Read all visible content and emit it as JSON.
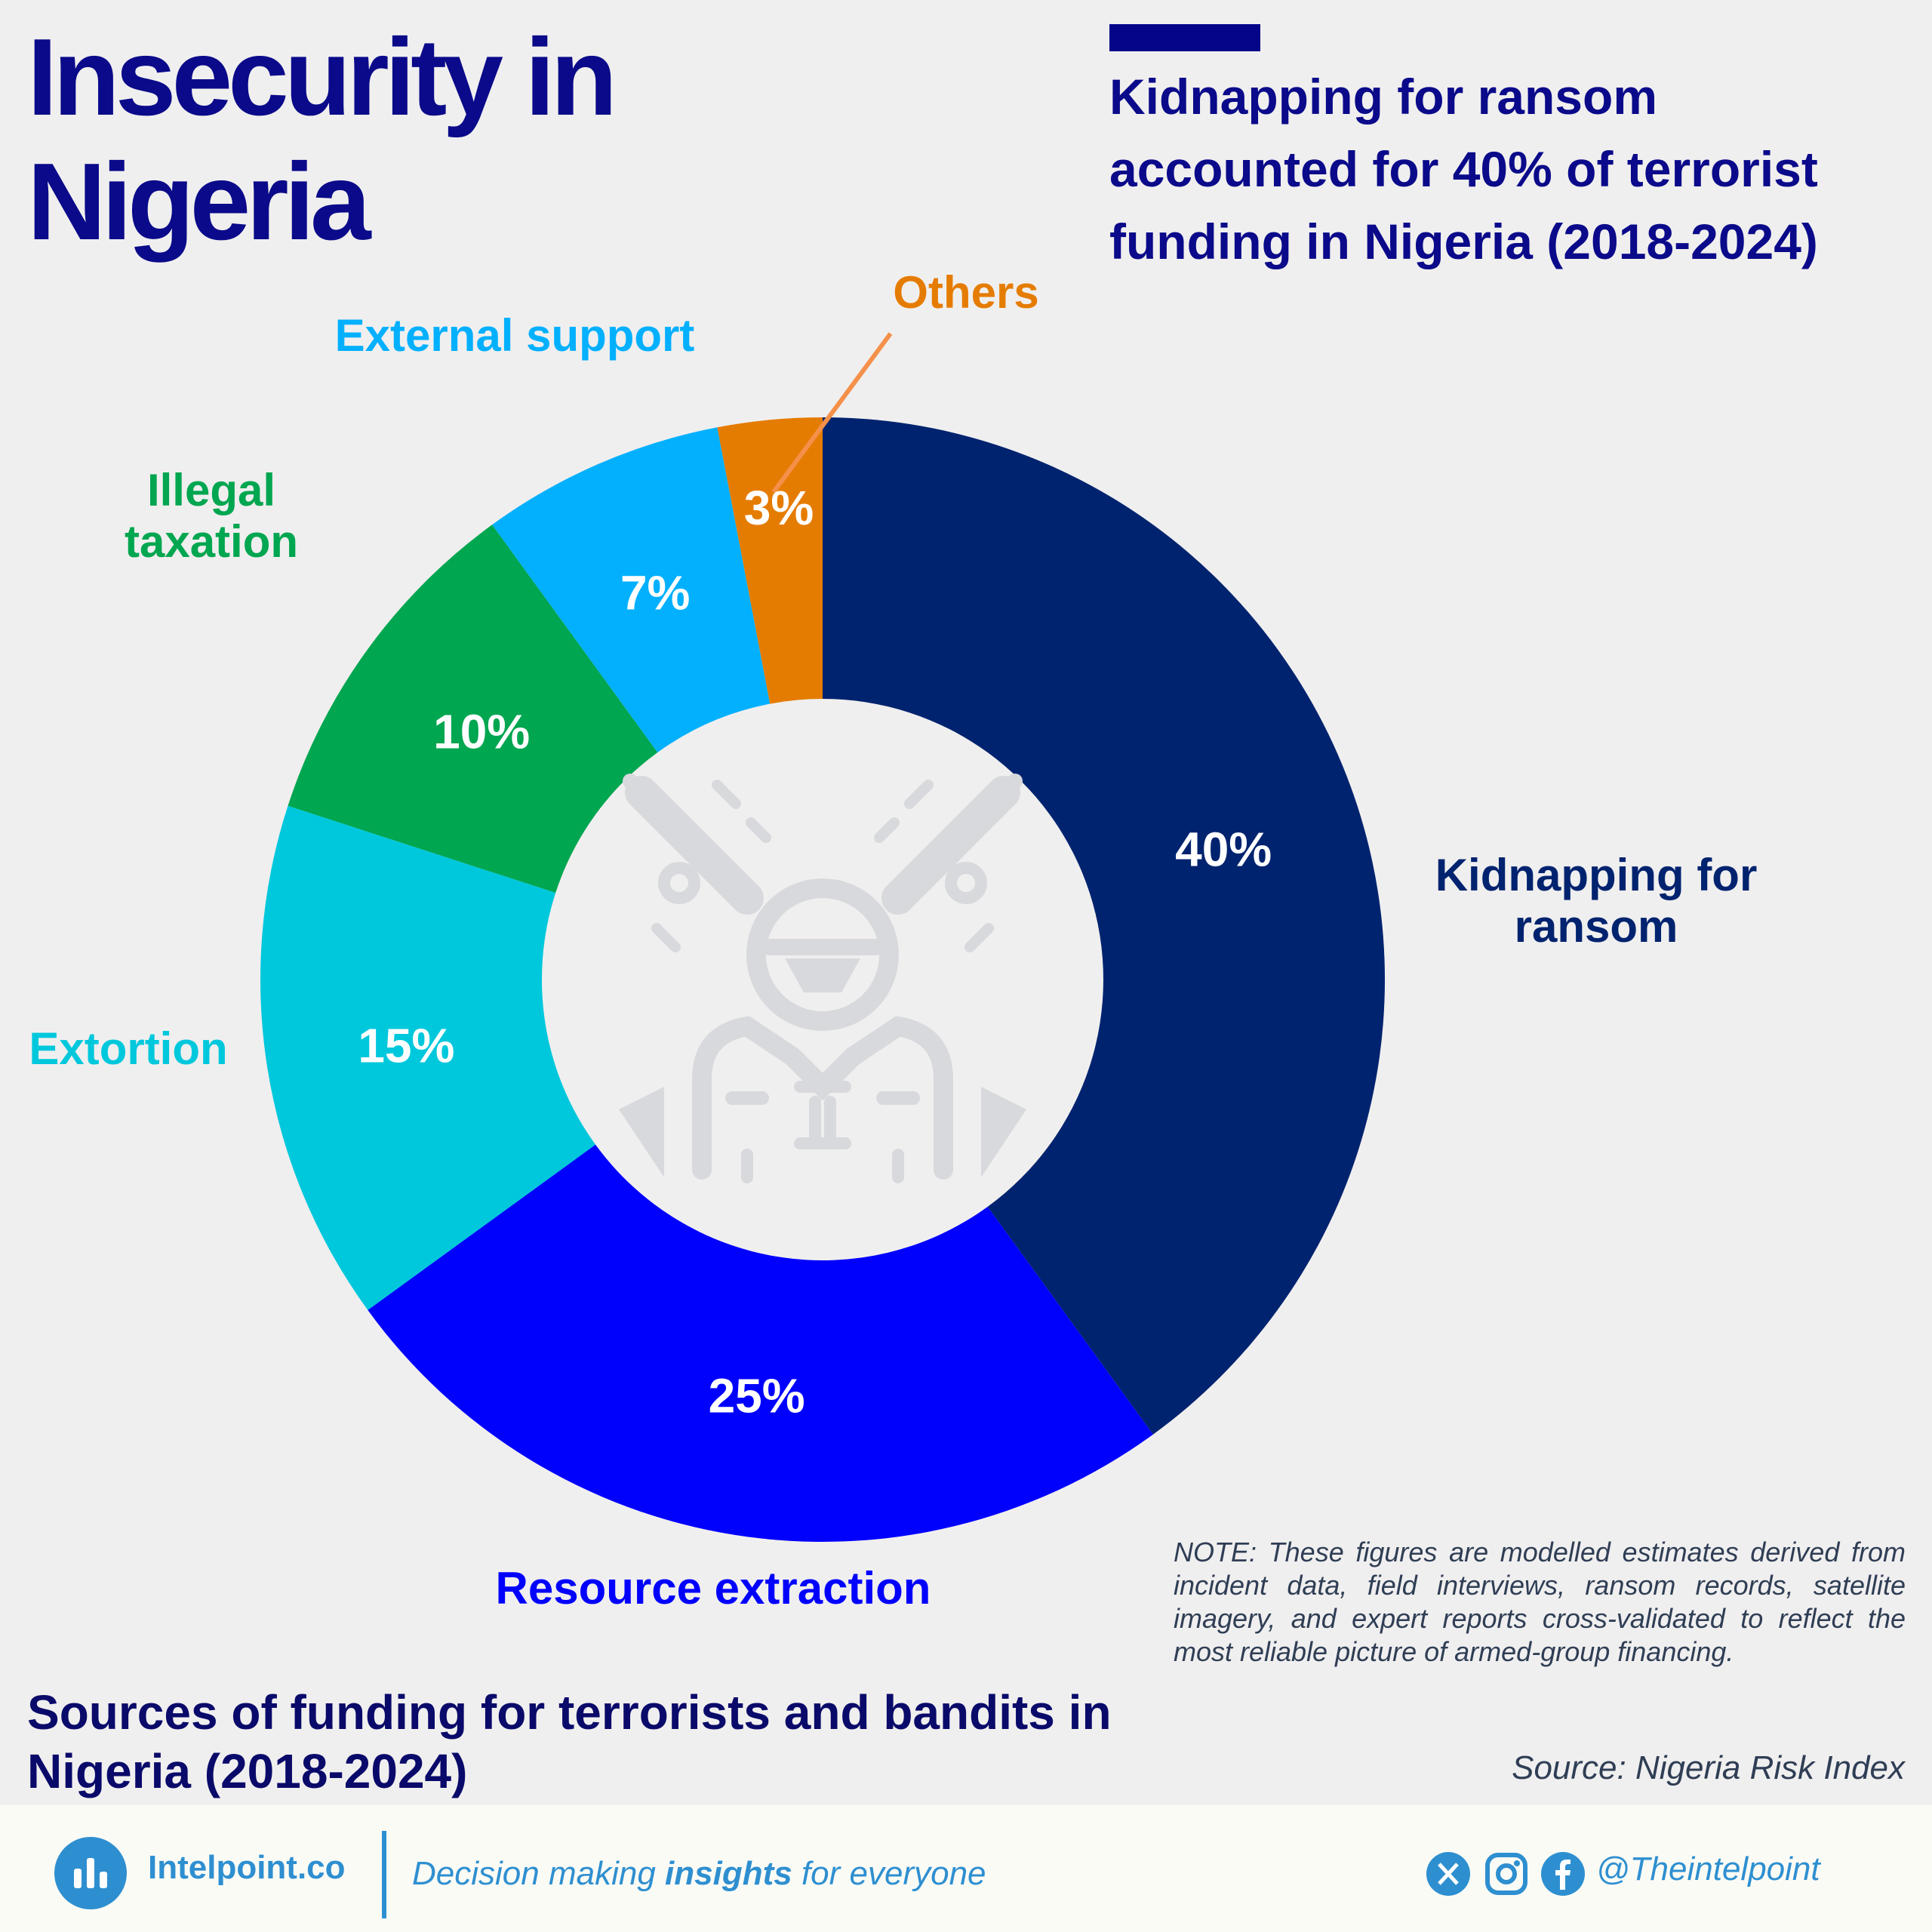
{
  "header": {
    "title_line1": "Insecurity in",
    "title_line2": "Nigeria",
    "headline_line1": "Kidnapping for ransom",
    "headline_line2": "accounted for 40% of terrorist",
    "headline_line3": "funding in Nigeria (2018-2024)"
  },
  "chart_data": {
    "type": "pie",
    "variant": "donut",
    "title": "Sources of funding for terrorists and bandits in Nigeria (2018-2024)",
    "units": "%",
    "slices": [
      {
        "label": "Kidnapping for ransom",
        "label_lines": [
          "Kidnapping for",
          "ransom"
        ],
        "value": 40,
        "value_label": "40%",
        "color": "#00236f",
        "label_color": "#00236f"
      },
      {
        "label": "Resource extraction",
        "label_lines": [
          "Resource extraction"
        ],
        "value": 25,
        "value_label": "25%",
        "color": "#0000fd",
        "label_color": "#0000fd"
      },
      {
        "label": "Extortion",
        "label_lines": [
          "Extortion"
        ],
        "value": 15,
        "value_label": "15%",
        "color": "#00c8dc",
        "label_color": "#00c8dc"
      },
      {
        "label": "Illegal taxation",
        "label_lines": [
          "Illegal",
          "taxation"
        ],
        "value": 10,
        "value_label": "10%",
        "color": "#01a650",
        "label_color": "#01a650"
      },
      {
        "label": "External support",
        "label_lines": [
          "External support"
        ],
        "value": 7,
        "value_label": "7%",
        "color": "#02b0fe",
        "label_color": "#02b0fe"
      },
      {
        "label": "Others",
        "label_lines": [
          "Others"
        ],
        "value": 3,
        "value_label": "3%",
        "color": "#e57c02",
        "label_color": "#e57c02"
      }
    ]
  },
  "note": "NOTE: These figures are modelled estimates derived from incident data, field interviews, ransom records, satellite imagery, and expert reports cross-validated to reflect the most reliable picture of armed-group financing.",
  "subtitle_line1": "Sources of funding for terrorists and bandits in",
  "subtitle_line2": "Nigeria (2018-2024)",
  "source": "Source: Nigeria Risk Index",
  "footer": {
    "brand": "Intelpoint.co",
    "tagline_pre": "Decision making ",
    "tagline_bold": "insights",
    "tagline_post": " for everyone",
    "handle": "@Theintelpoint",
    "icons": [
      "logo-icon",
      "x-icon",
      "instagram-icon",
      "facebook-icon"
    ]
  },
  "colors": {
    "title": "#0a0a8a",
    "accent": "#2e8fd0",
    "background": "#f0efef"
  }
}
